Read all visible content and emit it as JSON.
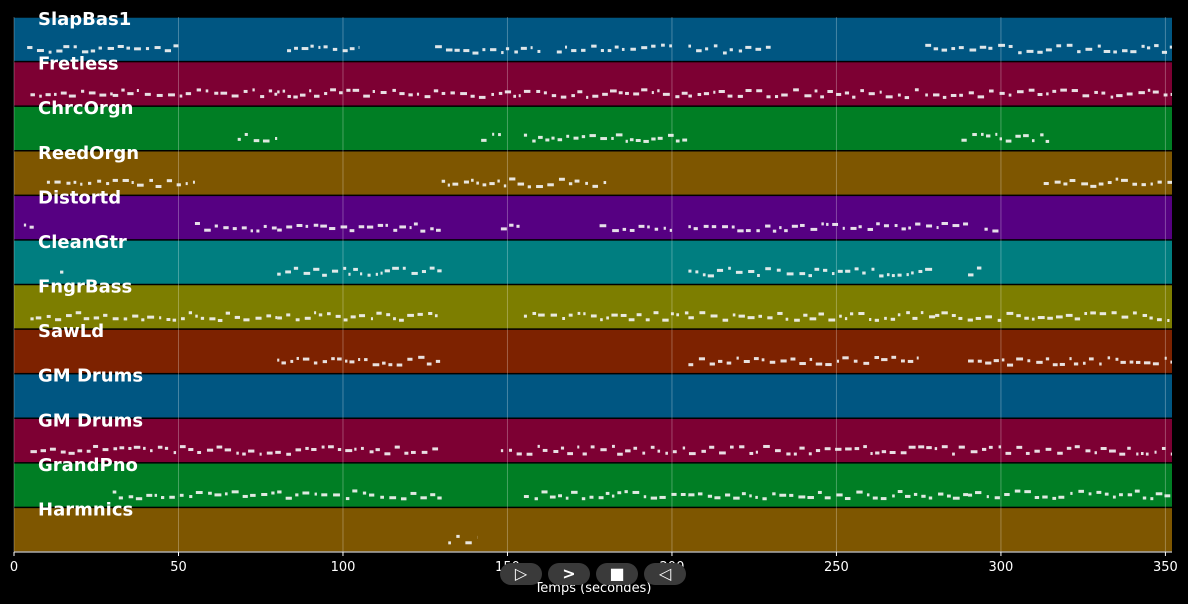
{
  "chart_data": {
    "type": "piano-roll",
    "xlabel": "Temps (secondes)",
    "xlim": [
      0,
      352
    ],
    "xticks": [
      0,
      50,
      100,
      150,
      200,
      250,
      300,
      350
    ],
    "grid": true,
    "tracks": [
      {
        "name": "SlapBas1",
        "color": "#005682",
        "notes": [
          [
            4,
            15
          ],
          [
            15,
            50
          ],
          [
            83,
            105
          ],
          [
            128,
            160
          ],
          [
            165,
            200
          ],
          [
            205,
            230
          ],
          [
            277,
            352
          ]
        ]
      },
      {
        "name": "Fretless",
        "color": "#7d0033",
        "notes": [
          [
            5,
            30
          ],
          [
            30,
            80
          ],
          [
            80,
            130
          ],
          [
            130,
            205
          ],
          [
            205,
            275
          ],
          [
            277,
            352
          ]
        ]
      },
      {
        "name": "ChrcOrgn",
        "color": "#007e24",
        "notes": [
          [
            68,
            80
          ],
          [
            142,
            148
          ],
          [
            155,
            205
          ],
          [
            288,
            315
          ]
        ]
      },
      {
        "name": "ReedOrgn",
        "color": "#7e5600",
        "notes": [
          [
            10,
            55
          ],
          [
            130,
            180
          ],
          [
            313,
            352
          ]
        ]
      },
      {
        "name": "Distortd",
        "color": "#560082",
        "notes": [
          [
            3,
            6
          ],
          [
            55,
            80
          ],
          [
            80,
            130
          ],
          [
            148,
            155
          ],
          [
            178,
            200
          ],
          [
            205,
            290
          ],
          [
            295,
            300
          ]
        ]
      },
      {
        "name": "CleanGtr",
        "color": "#007e80",
        "notes": [
          [
            14,
            15
          ],
          [
            80,
            130
          ],
          [
            205,
            280
          ],
          [
            290,
            295
          ]
        ]
      },
      {
        "name": "FngrBass",
        "color": "#7d7e00",
        "notes": [
          [
            5,
            30
          ],
          [
            30,
            80
          ],
          [
            80,
            130
          ],
          [
            155,
            205
          ],
          [
            205,
            280
          ],
          [
            280,
            352
          ]
        ]
      },
      {
        "name": "SawLd",
        "color": "#7d2200",
        "notes": [
          [
            80,
            130
          ],
          [
            205,
            275
          ],
          [
            290,
            352
          ]
        ]
      },
      {
        "name": "GM Drums",
        "color": "#005682",
        "notes": []
      },
      {
        "name": "GM Drums",
        "color": "#7d0033",
        "notes": [
          [
            5,
            130
          ],
          [
            148,
            352
          ]
        ]
      },
      {
        "name": "GrandPno",
        "color": "#007e24",
        "notes": [
          [
            30,
            80
          ],
          [
            80,
            130
          ],
          [
            155,
            205
          ],
          [
            205,
            290
          ],
          [
            290,
            352
          ]
        ]
      },
      {
        "name": "Harmnics",
        "color": "#7e5600",
        "notes": [
          [
            132,
            141
          ]
        ]
      }
    ]
  },
  "controls": {
    "play_label": "▷",
    "fast_forward_label": ">",
    "stop_label": "■",
    "rewind_label": "◁"
  }
}
